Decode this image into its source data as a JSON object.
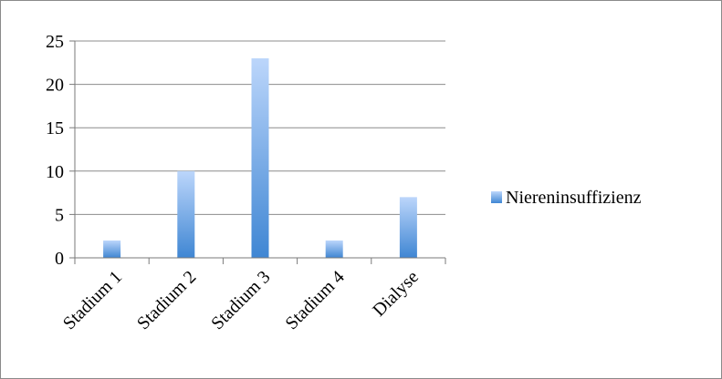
{
  "chart_data": {
    "type": "bar",
    "categories": [
      "Stadium 1",
      "Stadium 2",
      "Stadium 3",
      "Stadium 4",
      "Dialyse"
    ],
    "series": [
      {
        "name": "Niereninsuffizienz",
        "values": [
          2,
          10,
          23,
          2,
          7
        ]
      }
    ],
    "title": "",
    "xlabel": "",
    "ylabel": "",
    "ylim": [
      0,
      25
    ],
    "yticks": [
      0,
      5,
      10,
      15,
      20,
      25
    ],
    "grid": true,
    "legend_position": "right",
    "colors": {
      "bar_light": "#bcd6fb",
      "bar_dark": "#3f86d3",
      "gridline": "#8c8c8c",
      "axis": "#7a7a7a"
    }
  }
}
